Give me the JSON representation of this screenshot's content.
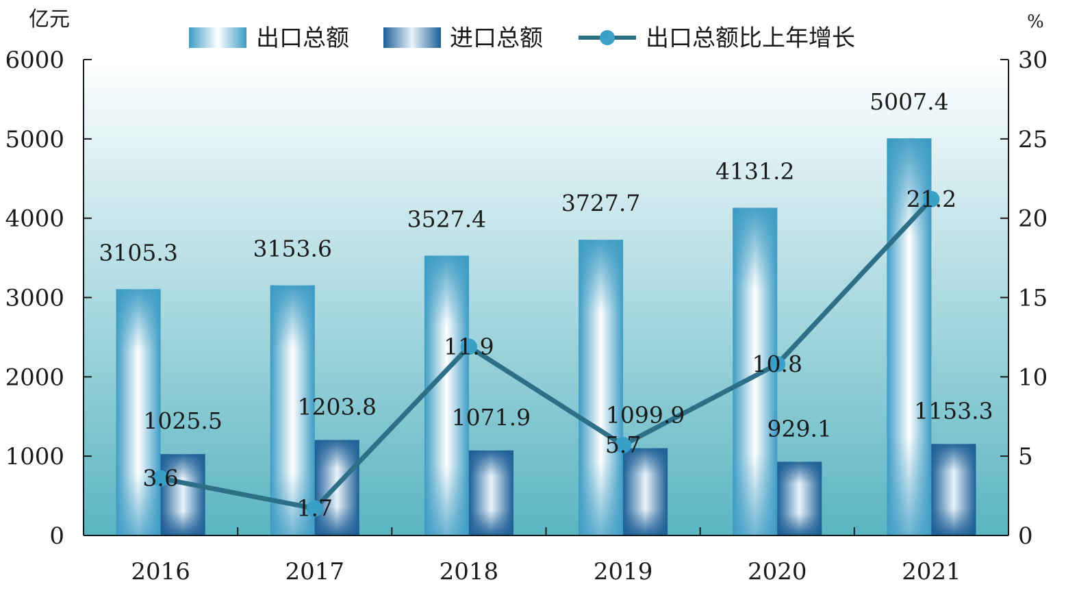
{
  "chart_data": {
    "type": "bar",
    "categories": [
      "2016",
      "2017",
      "2018",
      "2019",
      "2020",
      "2021"
    ],
    "series": [
      {
        "name": "出口总额",
        "type": "bar",
        "axis": "left",
        "values": [
          3105.3,
          3153.6,
          3527.4,
          3727.7,
          4131.2,
          5007.4
        ],
        "labels": [
          "3105.3",
          "3153.6",
          "3527.4",
          "3727.7",
          "4131.2",
          "5007.4"
        ]
      },
      {
        "name": "进口总额",
        "type": "bar",
        "axis": "left",
        "values": [
          1025.5,
          1203.8,
          1071.9,
          1099.9,
          929.1,
          1153.3
        ],
        "labels": [
          "1025.5",
          "1203.8",
          "1071.9",
          "1099.9",
          "929.1",
          "1153.3"
        ]
      },
      {
        "name": "出口总额比上年增长",
        "type": "line",
        "axis": "right",
        "values": [
          3.6,
          1.7,
          11.9,
          5.7,
          10.8,
          21.2
        ],
        "labels": [
          "3.6",
          "1.7",
          "11.9",
          "5.7",
          "10.8",
          "21.2"
        ]
      }
    ],
    "y_left": {
      "unit": "亿元",
      "ylim": [
        0,
        6000
      ],
      "ticks": [
        "0",
        "1000",
        "2000",
        "3000",
        "4000",
        "5000",
        "6000"
      ]
    },
    "y_right": {
      "unit": "%",
      "ylim": [
        0,
        30
      ],
      "ticks": [
        "0",
        "5",
        "10",
        "15",
        "20",
        "25",
        "30"
      ]
    },
    "grid": false,
    "legend": "top-center",
    "colors": {
      "export_dark": "#3d9cc4",
      "export_light": "#ffffff",
      "import_dark": "#1d5f96",
      "import_light": "#e8f3fb",
      "line": "#2e6f88",
      "marker": "#3aa0c8",
      "bg_top": "#ffffff",
      "bg_bottom": "#5ab5c2",
      "axis": "#1a1a1a"
    }
  }
}
